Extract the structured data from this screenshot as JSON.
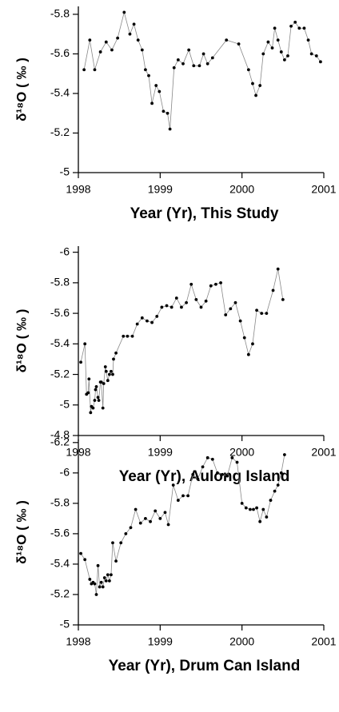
{
  "chart_data": [
    {
      "type": "line",
      "x_label": "Year (Yr), This Study",
      "y_label": "δ¹⁸O ( ‰ )",
      "line_color": "#888888",
      "marker_color": "#000000",
      "xlim": [
        1998,
        2001
      ],
      "xticks": [
        1998,
        1999,
        2000,
        2001
      ],
      "ylim": [
        -5,
        -5.84
      ],
      "yticks": [
        -5.8,
        -5.6,
        -5.4,
        -5.2,
        -5
      ],
      "x": [
        1998.07,
        1998.14,
        1998.2,
        1998.27,
        1998.34,
        1998.41,
        1998.48,
        1998.56,
        1998.63,
        1998.68,
        1998.73,
        1998.78,
        1998.82,
        1998.86,
        1998.9,
        1998.95,
        1998.99,
        1999.04,
        1999.09,
        1999.12,
        1999.17,
        1999.22,
        1999.28,
        1999.35,
        1999.41,
        1999.48,
        1999.53,
        1999.58,
        1999.64,
        1999.81,
        1999.96,
        2000.08,
        2000.13,
        2000.17,
        2000.22,
        2000.26,
        2000.32,
        2000.37,
        2000.4,
        2000.44,
        2000.48,
        2000.52,
        2000.56,
        2000.6,
        2000.65,
        2000.7,
        2000.76,
        2000.81,
        2000.85,
        2000.91,
        2000.96
      ],
      "values": [
        -5.52,
        -5.67,
        -5.52,
        -5.61,
        -5.66,
        -5.62,
        -5.68,
        -5.81,
        -5.7,
        -5.75,
        -5.67,
        -5.62,
        -5.52,
        -5.49,
        -5.35,
        -5.44,
        -5.41,
        -5.31,
        -5.3,
        -5.22,
        -5.53,
        -5.57,
        -5.55,
        -5.62,
        -5.54,
        -5.54,
        -5.6,
        -5.55,
        -5.58,
        -5.67,
        -5.65,
        -5.52,
        -5.45,
        -5.39,
        -5.44,
        -5.6,
        -5.66,
        -5.63,
        -5.73,
        -5.67,
        -5.61,
        -5.57,
        -5.59,
        -5.74,
        -5.76,
        -5.73,
        -5.73,
        -5.67,
        -5.6,
        -5.59,
        -5.56
      ]
    },
    {
      "type": "line",
      "x_label": "Year (Yr), Aulong Island",
      "y_label": "δ¹⁸O ( ‰ )",
      "line_color": "#888888",
      "marker_color": "#000000",
      "xlim": [
        1998,
        2001
      ],
      "xticks": [
        1998,
        1999,
        2000,
        2001
      ],
      "ylim": [
        -4.8,
        -6.04
      ],
      "yticks": [
        -6,
        -5.8,
        -5.6,
        -5.4,
        -5.2,
        -5,
        -4.8
      ],
      "x": [
        1998.03,
        1998.08,
        1998.1,
        1998.12,
        1998.13,
        1998.15,
        1998.16,
        1998.18,
        1998.2,
        1998.21,
        1998.22,
        1998.24,
        1998.25,
        1998.27,
        1998.28,
        1998.3,
        1998.31,
        1998.33,
        1998.34,
        1998.36,
        1998.38,
        1998.4,
        1998.42,
        1998.43,
        1998.46,
        1998.55,
        1998.6,
        1998.66,
        1998.72,
        1998.78,
        1998.84,
        1998.9,
        1998.96,
        1999.02,
        1999.08,
        1999.14,
        1999.2,
        1999.26,
        1999.32,
        1999.38,
        1999.44,
        1999.5,
        1999.56,
        1999.62,
        1999.68,
        1999.74,
        1999.8,
        1999.86,
        1999.92,
        1999.98,
        2000.03,
        2000.08,
        2000.13,
        2000.18,
        2000.24,
        2000.3,
        2000.38,
        2000.44,
        2000.5
      ],
      "values": [
        -5.28,
        -5.4,
        -5.07,
        -5.08,
        -5.17,
        -4.95,
        -4.99,
        -4.98,
        -5.03,
        -5.1,
        -5.12,
        -5.05,
        -5.03,
        -5.15,
        -5.15,
        -4.98,
        -5.14,
        -5.25,
        -5.22,
        -5.16,
        -5.2,
        -5.22,
        -5.2,
        -5.3,
        -5.34,
        -5.45,
        -5.45,
        -5.45,
        -5.53,
        -5.57,
        -5.55,
        -5.54,
        -5.58,
        -5.64,
        -5.65,
        -5.64,
        -5.7,
        -5.64,
        -5.67,
        -5.79,
        -5.69,
        -5.64,
        -5.68,
        -5.78,
        -5.79,
        -5.8,
        -5.59,
        -5.63,
        -5.67,
        -5.55,
        -5.44,
        -5.33,
        -5.4,
        -5.62,
        -5.6,
        -5.6,
        -5.75,
        -5.89,
        -5.69
      ]
    },
    {
      "type": "line",
      "x_label": "Year (Yr), Drum Can Island",
      "y_label": "δ¹⁸O ( ‰ )",
      "line_color": "#888888",
      "marker_color": "#000000",
      "xlim": [
        1998,
        2001
      ],
      "xticks": [
        1998,
        1999,
        2000,
        2001
      ],
      "ylim": [
        -5,
        -6.22
      ],
      "yticks": [
        -6.2,
        -6,
        -5.8,
        -5.6,
        -5.4,
        -5.2,
        -5
      ],
      "x": [
        1998.03,
        1998.08,
        1998.14,
        1998.16,
        1998.18,
        1998.2,
        1998.22,
        1998.24,
        1998.26,
        1998.28,
        1998.3,
        1998.32,
        1998.34,
        1998.36,
        1998.38,
        1998.4,
        1998.42,
        1998.46,
        1998.52,
        1998.58,
        1998.64,
        1998.7,
        1998.76,
        1998.82,
        1998.88,
        1998.94,
        1999.0,
        1999.06,
        1999.1,
        1999.16,
        1999.22,
        1999.28,
        1999.34,
        1999.4,
        1999.46,
        1999.52,
        1999.58,
        1999.64,
        1999.7,
        1999.76,
        1999.82,
        1999.88,
        1999.94,
        2000.0,
        2000.05,
        2000.1,
        2000.14,
        2000.18,
        2000.22,
        2000.26,
        2000.3,
        2000.35,
        2000.4,
        2000.44,
        2000.48,
        2000.52
      ],
      "values": [
        -5.47,
        -5.43,
        -5.3,
        -5.27,
        -5.28,
        -5.27,
        -5.2,
        -5.39,
        -5.25,
        -5.28,
        -5.25,
        -5.31,
        -5.29,
        -5.33,
        -5.29,
        -5.33,
        -5.54,
        -5.42,
        -5.54,
        -5.6,
        -5.64,
        -5.76,
        -5.67,
        -5.7,
        -5.68,
        -5.75,
        -5.7,
        -5.74,
        -5.66,
        -5.92,
        -5.82,
        -5.85,
        -5.85,
        -5.99,
        -5.96,
        -6.04,
        -6.1,
        -6.09,
        -6.0,
        -5.99,
        -5.98,
        -6.1,
        -6.07,
        -5.8,
        -5.77,
        -5.76,
        -5.76,
        -5.77,
        -5.68,
        -5.76,
        -5.71,
        -5.82,
        -5.88,
        -5.92,
        -6.0,
        -6.12
      ]
    }
  ]
}
